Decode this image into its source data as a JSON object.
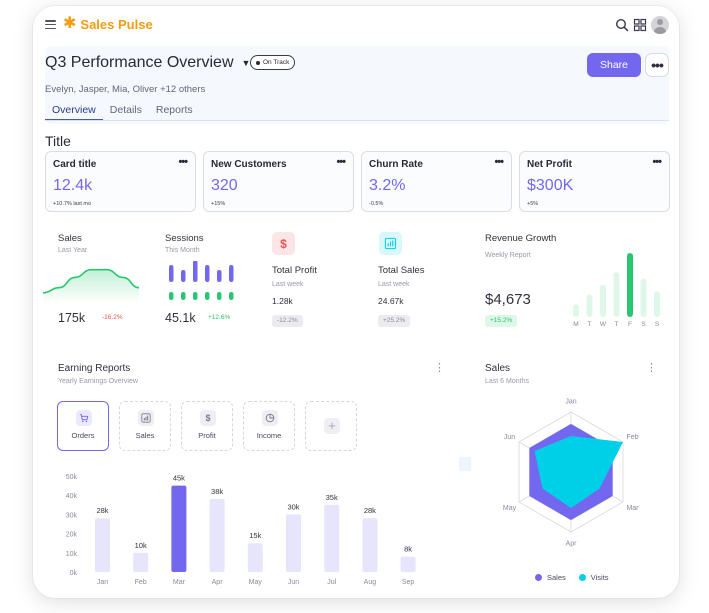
{
  "app": {
    "name": "Sales Pulse"
  },
  "header": {
    "title": "Q3 Performance Overview",
    "status": "On Track",
    "members": "Evelyn, Jasper, Mia, Oliver +12 others",
    "share_label": "Share",
    "tabs": [
      {
        "label": "Overview"
      },
      {
        "label": "Details"
      },
      {
        "label": "Reports"
      }
    ]
  },
  "section_title": "Title",
  "kpis": [
    {
      "title": "Card title",
      "value": "12.4k",
      "sub": "+10.7% last mo"
    },
    {
      "title": "New Customers",
      "value": "320",
      "sub": "+15%"
    },
    {
      "title": "Churn Rate",
      "value": "3.2%",
      "sub": "-0.5%"
    },
    {
      "title": "Net Profit",
      "value": "$300K",
      "sub": "+5%"
    }
  ],
  "stats": {
    "sales": {
      "label": "Sales",
      "sub": "Last Year",
      "value": "175k",
      "delta": "-16.2%"
    },
    "sessions": {
      "label": "Sessions",
      "sub": "This Month",
      "value": "45.1k",
      "delta": "+12.6%"
    },
    "total_profit": {
      "label": "Total Profit",
      "sub": "Last week",
      "value": "1.28k",
      "delta": "-12.2%"
    },
    "total_sales": {
      "label": "Total Sales",
      "sub": "Last week",
      "value": "24.67k",
      "delta": "+25.2%"
    },
    "revenue_growth": {
      "label": "Revenue Growth",
      "sub": "Weekly Report",
      "value": "$4,673",
      "delta": "+15.2%"
    }
  },
  "revenue_days": [
    "M",
    "T",
    "W",
    "T",
    "F",
    "S",
    "S"
  ],
  "earning": {
    "title": "Earning Reports",
    "sub": "Yearly Earnings Overview",
    "categories": [
      {
        "label": "Orders",
        "icon": "cart-icon"
      },
      {
        "label": "Sales",
        "icon": "bar-chart-icon"
      },
      {
        "label": "Profit",
        "icon": "dollar-icon"
      },
      {
        "label": "Income",
        "icon": "pie-chart-icon"
      }
    ]
  },
  "radar": {
    "title": "Sales",
    "sub": "Last 6 Months",
    "legend": [
      "Sales",
      "Visits"
    ]
  },
  "colors": {
    "accent": "#7367f0",
    "brand": "#f39c12",
    "success": "#28c76f",
    "danger": "#ea5455",
    "cyan": "#00cfe8"
  },
  "chart_data": [
    {
      "type": "bar",
      "name_ref": "earning-reports",
      "categories": [
        "Jan",
        "Feb",
        "Mar",
        "Apr",
        "May",
        "Jun",
        "Jul",
        "Aug",
        "Sep"
      ],
      "values": [
        28,
        10,
        45,
        38,
        15,
        30,
        35,
        28,
        8
      ],
      "data_labels": [
        "28k",
        "10k",
        "45k",
        "38k",
        "15k",
        "30k",
        "35k",
        "28k",
        "8k"
      ],
      "yticks": [
        "0k",
        "10k",
        "20k",
        "30k",
        "40k",
        "50k"
      ],
      "ylim": [
        0,
        50
      ],
      "highlight": "Mar"
    },
    {
      "type": "radar",
      "name_ref": "sales-radar",
      "axes": [
        "Jan",
        "Feb",
        "Mar",
        "Apr",
        "May",
        "Jun"
      ],
      "series": [
        {
          "name": "Sales",
          "values": [
            80,
            80,
            80,
            80,
            80,
            80
          ]
        },
        {
          "name": "Visits",
          "values": [
            60,
            100,
            55,
            60,
            55,
            70
          ]
        }
      ],
      "max": 100
    },
    {
      "type": "bar",
      "name_ref": "revenue-growth",
      "categories": [
        "M",
        "T",
        "W",
        "T",
        "F",
        "S",
        "S"
      ],
      "values": [
        20,
        35,
        50,
        70,
        100,
        60,
        40
      ],
      "highlight": "F"
    },
    {
      "type": "line",
      "name_ref": "sales-sparkline",
      "values": [
        12,
        10,
        6,
        3,
        3,
        6,
        10
      ]
    },
    {
      "type": "bar",
      "name_ref": "sessions-bars",
      "values": [
        3,
        2,
        4,
        3,
        2,
        3
      ]
    }
  ]
}
